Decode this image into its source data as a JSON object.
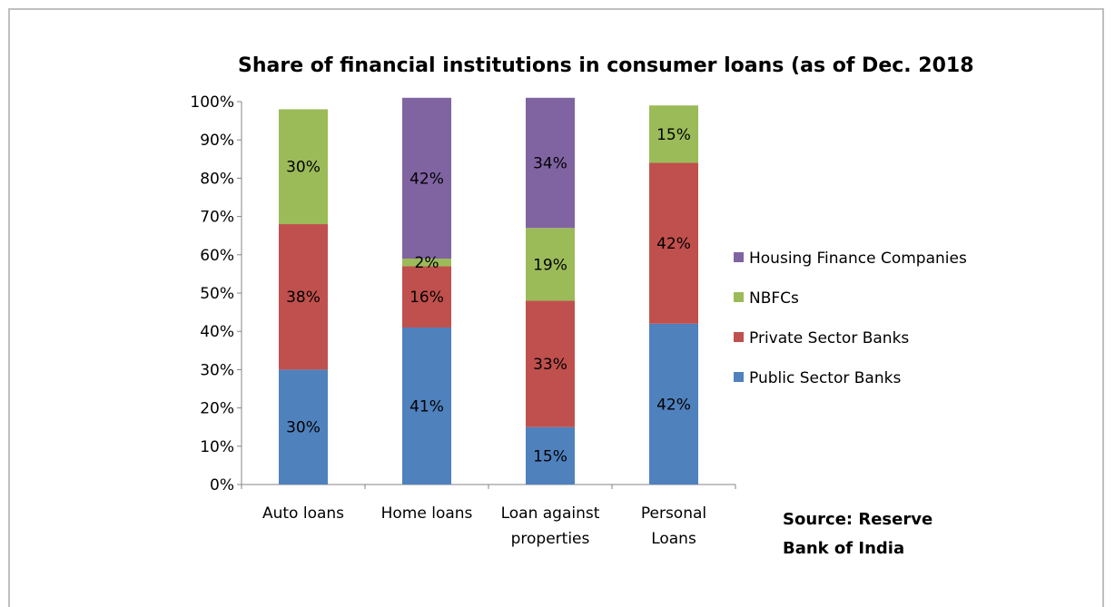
{
  "chart_data": {
    "type": "bar",
    "stacked": true,
    "title": "Share of financial institutions in consumer loans (as of Dec. 2018",
    "categories": [
      [
        "Auto loans"
      ],
      [
        "Home loans"
      ],
      [
        "Loan against",
        "properties"
      ],
      [
        "Personal",
        "Loans"
      ]
    ],
    "series": [
      {
        "name": "Public Sector Banks",
        "color": "#4f81bd",
        "values": [
          30,
          41,
          15,
          42
        ]
      },
      {
        "name": "Private Sector Banks",
        "color": "#c0504d",
        "values": [
          38,
          16,
          33,
          42
        ]
      },
      {
        "name": "NBFCs",
        "color": "#9bbb59",
        "values": [
          30,
          2,
          19,
          15
        ]
      },
      {
        "name": "Housing Finance Companies",
        "color": "#8064a2",
        "values": [
          0,
          42,
          34,
          0
        ]
      }
    ],
    "data_labels": [
      [
        "30%",
        "41%",
        "15%",
        "42%"
      ],
      [
        "38%",
        "16%",
        "33%",
        "42%"
      ],
      [
        "30%",
        "2%",
        "19%",
        "15%"
      ],
      [
        "",
        "42%",
        "34%",
        ""
      ]
    ],
    "bar_totals": [
      98,
      100,
      100,
      99
    ],
    "ylim": [
      0,
      100
    ],
    "yticks": [
      "0%",
      "10%",
      "20%",
      "30%",
      "40%",
      "50%",
      "60%",
      "70%",
      "80%",
      "90%",
      "100%"
    ],
    "legend_position": "right",
    "legend_order": [
      3,
      2,
      1,
      0
    ],
    "grid": false,
    "xlabel": "",
    "ylabel": ""
  },
  "source_note": [
    "Source: Reserve",
    "Bank of India"
  ]
}
